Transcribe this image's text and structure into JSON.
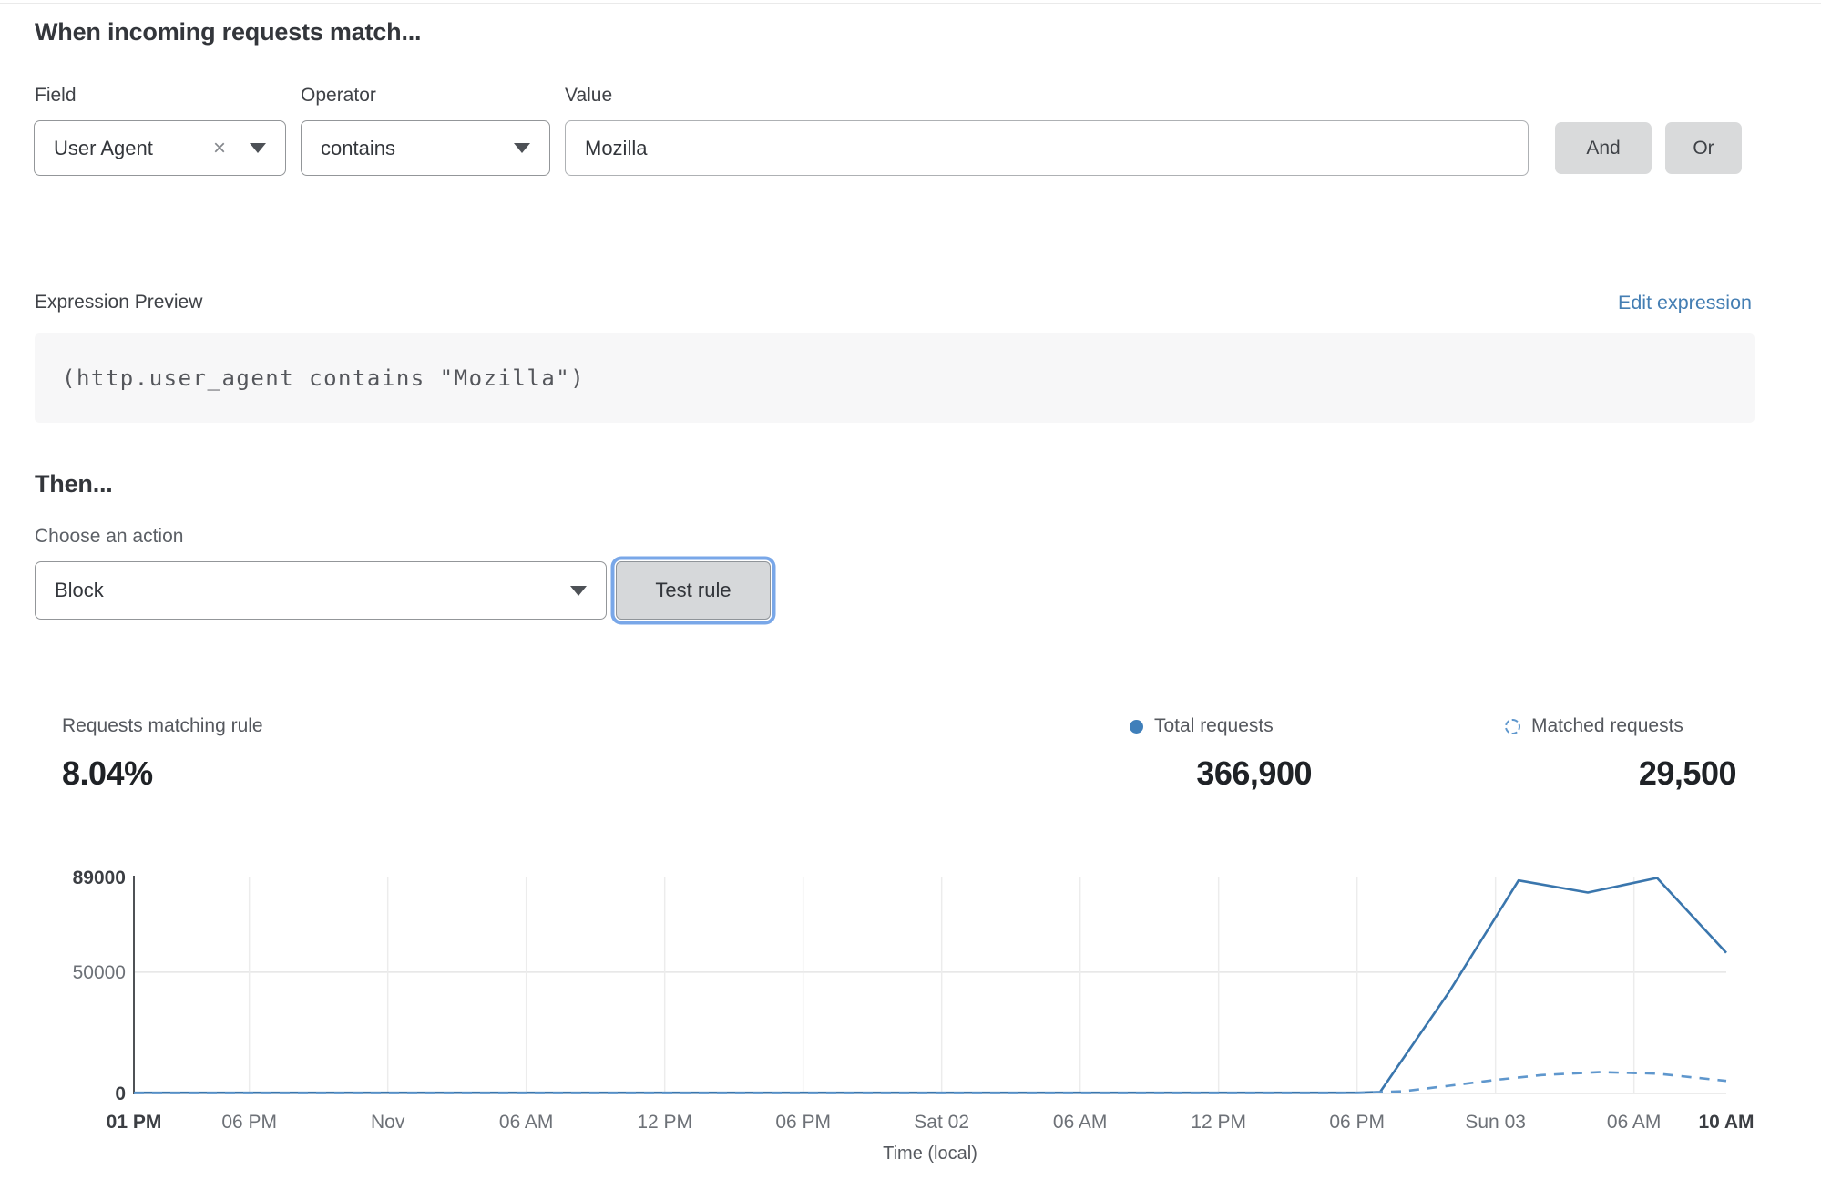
{
  "match": {
    "title": "When incoming requests match...",
    "field": {
      "label": "Field",
      "value": "User Agent",
      "clear": "×"
    },
    "operator": {
      "label": "Operator",
      "value": "contains"
    },
    "value": {
      "label": "Value",
      "value": "Mozilla"
    },
    "and_label": "And",
    "or_label": "Or"
  },
  "expression": {
    "label": "Expression Preview",
    "edit_link": "Edit expression",
    "code": "(http.user_agent contains \"Mozilla\")"
  },
  "action": {
    "title": "Then...",
    "choose_label": "Choose an action",
    "value": "Block",
    "test_button": "Test rule"
  },
  "stats": {
    "matching": {
      "label": "Requests matching rule",
      "value": "8.04%"
    },
    "total": {
      "label": "Total requests",
      "value": "366,900"
    },
    "matched": {
      "label": "Matched requests",
      "value": "29,500"
    }
  },
  "colors": {
    "link_blue": "#447eb3",
    "focus_ring": "#79a7e8",
    "chart_line": "#3a76ad",
    "chart_dashed": "#5f97cd",
    "legend_dot": "#3f7fba",
    "grid_line": "#ececec",
    "axis_line": "#4f5256"
  },
  "chart_data": {
    "type": "line",
    "title": "",
    "xlabel": "Time (local)",
    "ylabel": "",
    "ylim": [
      0,
      89000
    ],
    "x_unit": "hours from window start (01 PM Oct 31 to 10 AM Sun Nov 03)",
    "grid": true,
    "legend_position": "top-right",
    "y_ticks": [
      {
        "value": 0,
        "label": "0",
        "bold": true
      },
      {
        "value": 50000,
        "label": "50000",
        "bold": false
      },
      {
        "value": 89000,
        "label": "89000",
        "bold": true
      }
    ],
    "x_ticks": [
      {
        "hour": 0,
        "label": "01 PM",
        "bold": true,
        "grid": false
      },
      {
        "hour": 5,
        "label": "06 PM",
        "bold": false,
        "grid": true
      },
      {
        "hour": 11,
        "label": "Nov",
        "bold": false,
        "grid": true
      },
      {
        "hour": 17,
        "label": "06 AM",
        "bold": false,
        "grid": true
      },
      {
        "hour": 23,
        "label": "12 PM",
        "bold": false,
        "grid": true
      },
      {
        "hour": 29,
        "label": "06 PM",
        "bold": false,
        "grid": true
      },
      {
        "hour": 35,
        "label": "Sat 02",
        "bold": false,
        "grid": true
      },
      {
        "hour": 41,
        "label": "06 AM",
        "bold": false,
        "grid": true
      },
      {
        "hour": 47,
        "label": "12 PM",
        "bold": false,
        "grid": true
      },
      {
        "hour": 53,
        "label": "06 PM",
        "bold": false,
        "grid": true
      },
      {
        "hour": 59,
        "label": "Sun 03",
        "bold": false,
        "grid": true
      },
      {
        "hour": 65,
        "label": "06 AM",
        "bold": false,
        "grid": true
      },
      {
        "hour": 69,
        "label": "10 AM",
        "bold": true,
        "grid": false
      }
    ],
    "series": [
      {
        "name": "Total requests",
        "style": "solid",
        "points": [
          [
            0,
            300
          ],
          [
            5,
            300
          ],
          [
            11,
            300
          ],
          [
            17,
            300
          ],
          [
            23,
            300
          ],
          [
            29,
            300
          ],
          [
            35,
            300
          ],
          [
            41,
            300
          ],
          [
            47,
            300
          ],
          [
            53,
            300
          ],
          [
            54,
            600
          ],
          [
            57,
            42000
          ],
          [
            60,
            87800
          ],
          [
            63,
            82800
          ],
          [
            66,
            88800
          ],
          [
            69,
            58000
          ]
        ]
      },
      {
        "name": "Matched requests",
        "style": "dashed",
        "points": [
          [
            0,
            150
          ],
          [
            5,
            150
          ],
          [
            11,
            150
          ],
          [
            17,
            150
          ],
          [
            23,
            150
          ],
          [
            29,
            150
          ],
          [
            35,
            150
          ],
          [
            41,
            150
          ],
          [
            47,
            150
          ],
          [
            53,
            200
          ],
          [
            55,
            900
          ],
          [
            57,
            3200
          ],
          [
            59,
            5600
          ],
          [
            61,
            7600
          ],
          [
            63.5,
            8800
          ],
          [
            66,
            8200
          ],
          [
            69,
            5200
          ]
        ]
      }
    ]
  }
}
